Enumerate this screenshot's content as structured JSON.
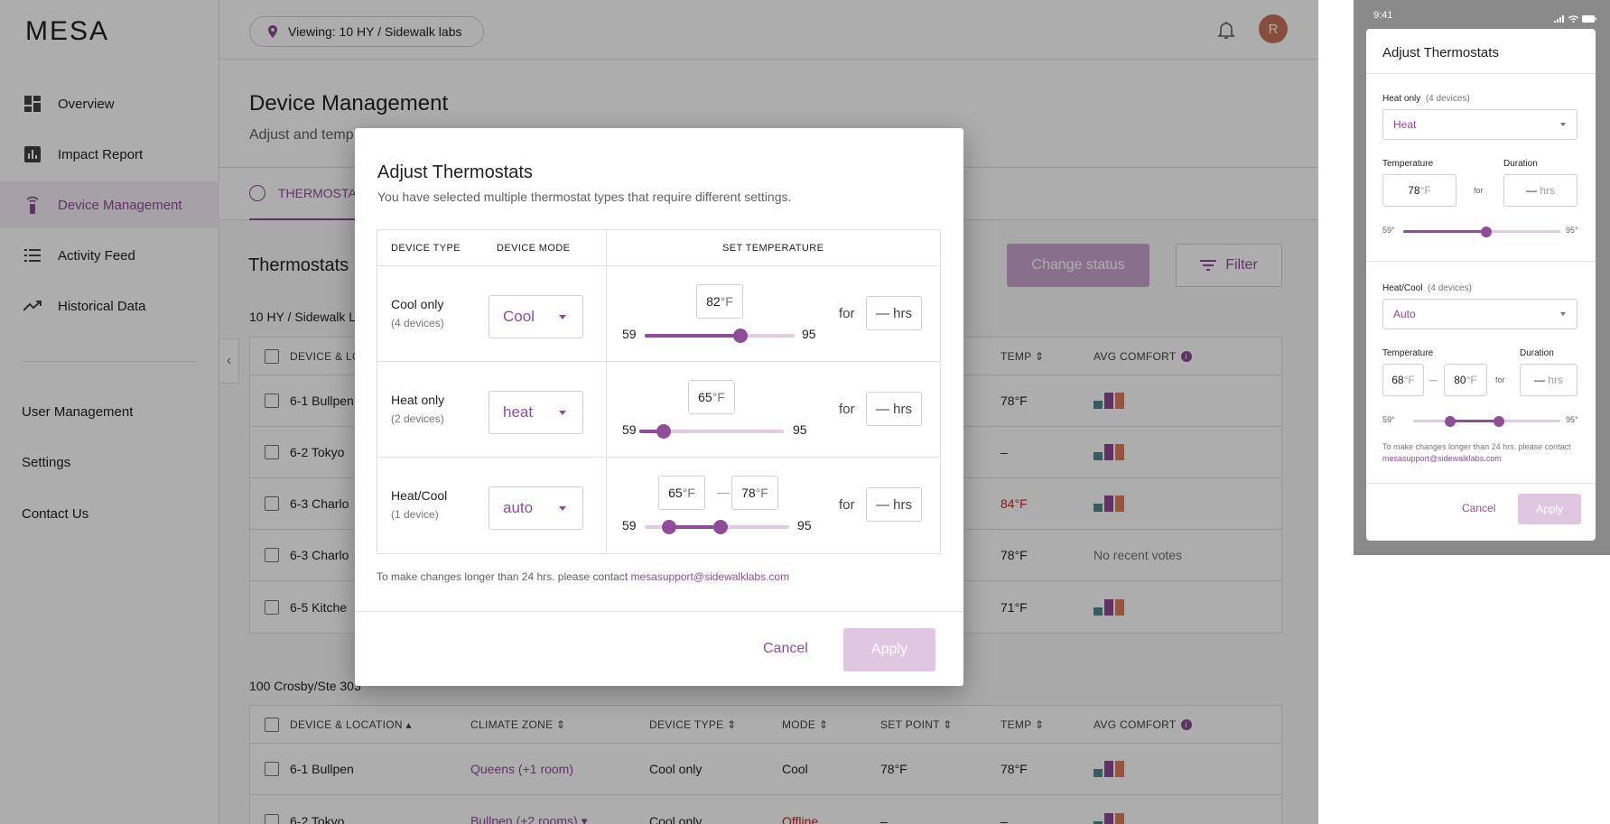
{
  "app": {
    "logo": "MESA",
    "nav": [
      {
        "label": "Overview",
        "icon": "dashboard-icon"
      },
      {
        "label": "Impact Report",
        "icon": "report-chart-icon"
      },
      {
        "label": "Device Management",
        "icon": "thermostat-remote-icon",
        "active": true
      },
      {
        "label": "Activity Feed",
        "icon": "list-icon"
      },
      {
        "label": "Historical Data",
        "icon": "trending-up-icon"
      }
    ],
    "links": [
      "User Management",
      "Settings",
      "Contact Us"
    ]
  },
  "topbar": {
    "viewing": "Viewing: 10 HY / Sidewalk labs",
    "avatar": "R"
  },
  "page": {
    "title": "Device Management",
    "subtitle": "Adjust and temp",
    "tab": "THERMOSTAT"
  },
  "section": {
    "title": "Thermostats",
    "change_status": "Change status",
    "filter": "Filter"
  },
  "group1": {
    "name": "10 HY / Sidewalk L",
    "headers": {
      "device": "DEVICE  & LOC",
      "temp": "TEMP",
      "comfort": "AVG COMFORT"
    },
    "rows": [
      {
        "device": "6-1  Bullpen",
        "temp": "78°F",
        "comfort": "bars"
      },
      {
        "device": "6-2  Tokyo",
        "temp": "–",
        "comfort": "bars"
      },
      {
        "device": "6-3  Charlo",
        "temp": "84°F",
        "comfort": "bars",
        "temp_alert": true
      },
      {
        "device": "6-3  Charlo",
        "temp": "78°F",
        "comfort": "No recent votes"
      },
      {
        "device": "6-5  Kitche",
        "temp": "71°F",
        "comfort": "bars"
      }
    ]
  },
  "group2": {
    "name": "100 Crosby/Ste 303",
    "headers": {
      "device": "DEVICE  & LOCATION",
      "zone": "CLIMATE ZONE",
      "type": "DEVICE TYPE",
      "mode": "MODE",
      "setpoint": "SET POINT",
      "temp": "TEMP",
      "comfort": "AVG COMFORT"
    },
    "rows": [
      {
        "device": "6-1  Bullpen",
        "zone": "Queens (+1 room)",
        "type": "Cool only",
        "mode": "Cool",
        "setpoint": "78°F",
        "temp": "78°F"
      },
      {
        "device": "6-2  Tokyo",
        "zone": "Bullpen (+2 rooms)",
        "type": "Cool only",
        "mode": "Offline",
        "setpoint": "–",
        "temp": "–"
      }
    ]
  },
  "modal": {
    "title": "Adjust Thermostats",
    "subtitle": "You have selected multiple thermostat types that require different settings.",
    "headers": {
      "type": "DEVICE TYPE",
      "mode": "DEVICE MODE",
      "temp": "SET TEMPERATURE"
    },
    "rows": [
      {
        "type": "Cool only",
        "count": "(4 devices)",
        "mode": "Cool",
        "temp_value": "82",
        "unit": "°F",
        "min": "59",
        "max": "95",
        "value": 82,
        "for": "for",
        "hrs_dash": "—",
        "hrs": "hrs"
      },
      {
        "type": "Heat only",
        "count": "(2 devices)",
        "mode": "heat",
        "temp_value": "65",
        "unit": "°F",
        "min": "59",
        "max": "95",
        "value": 65,
        "for": "for",
        "hrs_dash": "—",
        "hrs": "hrs"
      },
      {
        "type": "Heat/Cool",
        "count": "(1 device)",
        "mode": "auto",
        "low_value": "65",
        "high_value": "78",
        "unit": "°F",
        "unit_spaced": " °F",
        "sep": "—",
        "min": "59",
        "max": "95",
        "low": 65,
        "high": 78,
        "for": "for",
        "hrs_dash": "—",
        "hrs": "hrs"
      }
    ],
    "note": "To make changes longer than 24 hrs. please contact ",
    "email": "mesasupport@sidewalklabs.com",
    "cancel": "Cancel",
    "apply": "Apply"
  },
  "phone": {
    "time": "9:41",
    "title": "Adjust Thermostats",
    "heat": {
      "label": "Heat only",
      "count": "(4 devices)",
      "mode": "Heat",
      "temp_label": "Temperature",
      "duration_label": "Duration",
      "temp_value": "78",
      "unit": "°F",
      "for": "for",
      "dur_dash": "—",
      "dur": "hrs",
      "min": "59°",
      "max": "95°",
      "value": 78
    },
    "heatcool": {
      "label": "Heat/Cool",
      "count": "(4 devices)",
      "mode": "Auto",
      "temp_label": "Temperature",
      "duration_label": "Duration",
      "low_value": "68",
      "high_value": "80",
      "unit": "°F",
      "sep": "—",
      "for": "for",
      "dur_dash": "—",
      "dur": "hrs",
      "min": "59°",
      "max": "95°",
      "low": 68,
      "high": 80
    },
    "note": "To make changes longer than 24 hrs. please contact ",
    "email": "mesasupport@sidewalklabs.com",
    "cancel": "Cancel",
    "apply": "Apply"
  },
  "colors": {
    "accent": "#8e4c99",
    "accent_light": "#dfc7e2",
    "alert": "#c62828",
    "comfort": [
      "#4f8a8b",
      "#8e4c99",
      "#e07b5a"
    ]
  }
}
